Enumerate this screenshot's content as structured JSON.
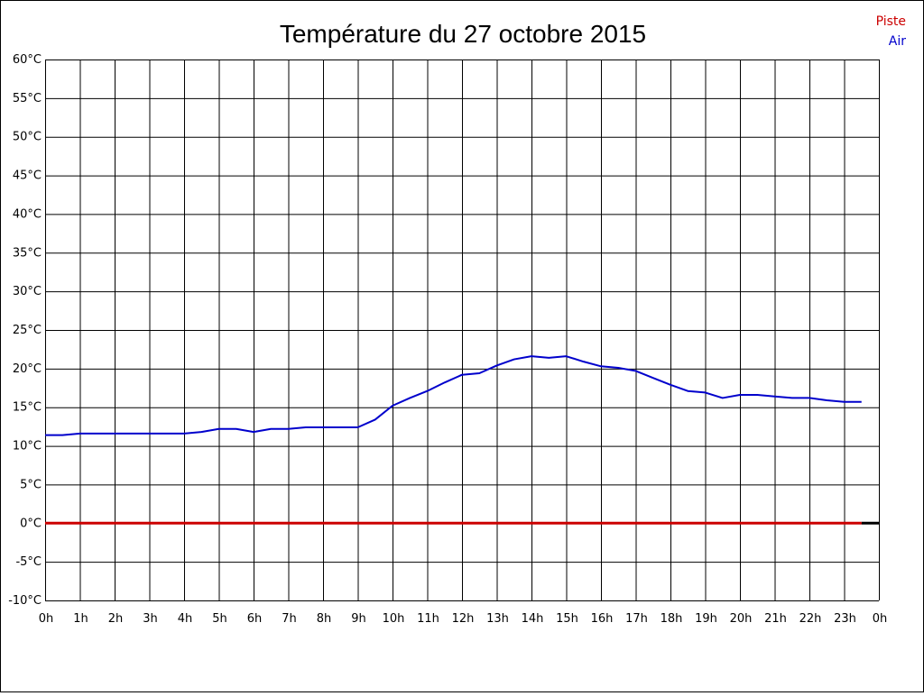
{
  "chart_data": {
    "type": "line",
    "title": "Température du 27 octobre 2015",
    "xlabel": "",
    "ylabel": "",
    "x_ticks": [
      "0h",
      "1h",
      "2h",
      "3h",
      "4h",
      "5h",
      "6h",
      "7h",
      "8h",
      "9h",
      "10h",
      "11h",
      "12h",
      "13h",
      "14h",
      "15h",
      "16h",
      "17h",
      "18h",
      "19h",
      "20h",
      "21h",
      "22h",
      "23h",
      "0h"
    ],
    "y_ticks": [
      "60°C",
      "55°C",
      "50°C",
      "45°C",
      "40°C",
      "35°C",
      "30°C",
      "25°C",
      "20°C",
      "15°C",
      "10°C",
      "5°C",
      "0°C",
      "-5°C",
      "-10°C"
    ],
    "xlim": [
      0,
      24
    ],
    "ylim": [
      -10,
      60
    ],
    "grid": true,
    "legend_position": "top-right",
    "series": [
      {
        "name": "Piste",
        "color": "#cc0000",
        "x": [
          0,
          23.5
        ],
        "y": [
          0,
          0
        ]
      },
      {
        "name": "Air",
        "color": "#0000cc",
        "x": [
          0,
          0.5,
          1,
          1.5,
          2,
          2.5,
          3,
          3.5,
          4,
          4.5,
          5,
          5.5,
          6,
          6.5,
          7,
          7.5,
          8,
          8.5,
          9,
          9.5,
          10,
          10.5,
          11,
          11.5,
          12,
          12.5,
          13,
          13.5,
          14,
          14.5,
          15,
          15.5,
          16,
          16.5,
          17,
          17.5,
          18,
          18.5,
          19,
          19.5,
          20,
          20.5,
          21,
          21.5,
          22,
          22.5,
          23,
          23.5
        ],
        "y": [
          11.4,
          11.4,
          11.6,
          11.6,
          11.6,
          11.6,
          11.6,
          11.6,
          11.6,
          11.8,
          12.2,
          12.2,
          11.8,
          12.2,
          12.2,
          12.4,
          12.4,
          12.4,
          12.4,
          13.4,
          15.2,
          16.2,
          17.1,
          18.2,
          19.2,
          19.4,
          20.4,
          21.2,
          21.6,
          21.4,
          21.6,
          20.9,
          20.3,
          20.1,
          19.7,
          18.8,
          17.9,
          17.1,
          16.9,
          16.2,
          16.6,
          16.6,
          16.4,
          16.2,
          16.2,
          15.9,
          15.7,
          15.7
        ]
      }
    ]
  },
  "colors": {
    "grid": "#000000",
    "axis_end_marker": "#000000"
  }
}
